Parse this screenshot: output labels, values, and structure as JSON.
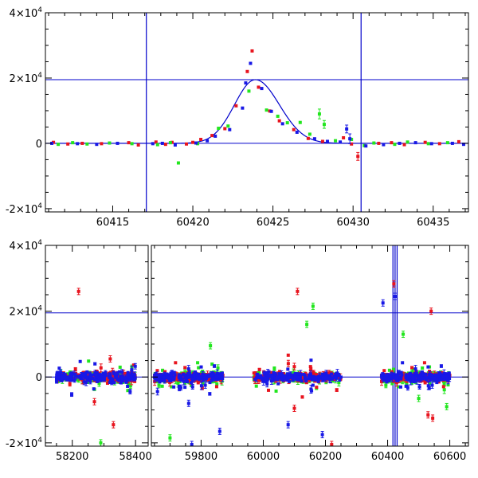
{
  "colors": {
    "red": "#e8141e",
    "green": "#22e61e",
    "blue": "#1818e6",
    "line": "#0000cc"
  },
  "chart_data": [
    {
      "type": "scatter",
      "title": "",
      "xlabel": "",
      "ylabel": "",
      "xlim": [
        60410.8,
        60437.2
      ],
      "ylim": [
        -21000,
        40000
      ],
      "grid": false,
      "x_ticks": [
        60415,
        60420,
        60425,
        60430,
        60435
      ],
      "y_ticks": [
        {
          "value": -20000,
          "mant": "-2×10",
          "exp": "4"
        },
        {
          "value": 0,
          "mant": "0",
          "exp": ""
        },
        {
          "value": 20000,
          "mant": "2×10",
          "exp": "4"
        },
        {
          "value": 40000,
          "mant": "4×10",
          "exp": "4"
        }
      ],
      "vlines": [
        60417.1,
        60430.5
      ],
      "hlines": [
        0,
        19500
      ],
      "model_curve": {
        "peak_x": 60423.9,
        "peak_y": 19500,
        "rise_width": 1.3,
        "decay_width": 1.5
      },
      "series": [
        {
          "color": "red",
          "points": [
            [
              60411.3,
              300,
              0
            ],
            [
              60412.2,
              -200,
              0
            ],
            [
              60413.1,
              0,
              0
            ],
            [
              60414.3,
              -100,
              0
            ],
            [
              60416.0,
              200,
              0
            ],
            [
              60416.6,
              -500,
              0
            ],
            [
              60417.7,
              400,
              0
            ],
            [
              60418.3,
              -300,
              0
            ],
            [
              60418.7,
              300,
              0
            ],
            [
              60419.6,
              -200,
              0
            ],
            [
              60420.0,
              300,
              0
            ],
            [
              60420.5,
              1200,
              0
            ],
            [
              60421.2,
              2400,
              0
            ],
            [
              60422.0,
              4500,
              0
            ],
            [
              60422.7,
              11500,
              0
            ],
            [
              60423.4,
              22000,
              0
            ],
            [
              60423.7,
              28300,
              0
            ],
            [
              60424.1,
              17200,
              0
            ],
            [
              60424.8,
              9900,
              0
            ],
            [
              60425.4,
              6900,
              0
            ],
            [
              60426.3,
              4200,
              0
            ],
            [
              60427.2,
              1500,
              0
            ],
            [
              60428.1,
              600,
              0
            ],
            [
              60429.4,
              1700,
              0
            ],
            [
              60429.9,
              -200,
              0
            ],
            [
              60430.3,
              -4000,
              1200
            ],
            [
              60431.6,
              0,
              0
            ],
            [
              60432.4,
              200,
              0
            ],
            [
              60433.2,
              -400,
              0
            ],
            [
              60434.5,
              300,
              0
            ],
            [
              60435.4,
              -100,
              0
            ],
            [
              60436.6,
              500,
              0
            ]
          ]
        },
        {
          "color": "green",
          "points": [
            [
              60411.6,
              -300,
              0
            ],
            [
              60412.5,
              200,
              0
            ],
            [
              60413.4,
              -200,
              0
            ],
            [
              60414.8,
              100,
              0
            ],
            [
              60416.2,
              -100,
              0
            ],
            [
              60417.8,
              -400,
              0
            ],
            [
              60418.6,
              200,
              0
            ],
            [
              60419.1,
              -6000,
              0
            ],
            [
              60420.3,
              -100,
              0
            ],
            [
              60421.6,
              4600,
              0
            ],
            [
              60422.2,
              5300,
              0
            ],
            [
              60423.5,
              16000,
              0
            ],
            [
              60424.6,
              10200,
              0
            ],
            [
              60425.3,
              8300,
              0
            ],
            [
              60425.9,
              6300,
              0
            ],
            [
              60426.7,
              6400,
              0
            ],
            [
              60427.3,
              2800,
              0
            ],
            [
              60427.9,
              9000,
              1500
            ],
            [
              60428.2,
              5800,
              1200
            ],
            [
              60428.9,
              800,
              0
            ],
            [
              60429.9,
              1200,
              0
            ],
            [
              60430.7,
              -700,
              0
            ],
            [
              60431.3,
              100,
              0
            ],
            [
              60432.6,
              -300,
              0
            ],
            [
              60433.4,
              400,
              0
            ],
            [
              60434.7,
              -100,
              0
            ],
            [
              60435.9,
              200,
              0
            ]
          ]
        },
        {
          "color": "blue",
          "points": [
            [
              60411.2,
              0,
              0
            ],
            [
              60412.8,
              -100,
              0
            ],
            [
              60414.0,
              -300,
              0
            ],
            [
              60415.3,
              0,
              0
            ],
            [
              60417.5,
              -100,
              0
            ],
            [
              60418.1,
              0,
              0
            ],
            [
              60418.9,
              -500,
              0
            ],
            [
              60420.2,
              100,
              0
            ],
            [
              60420.9,
              800,
              0
            ],
            [
              60421.4,
              2200,
              0
            ],
            [
              60422.3,
              4200,
              0
            ],
            [
              60423.1,
              10800,
              0
            ],
            [
              60423.3,
              18500,
              0
            ],
            [
              60423.6,
              24500,
              0
            ],
            [
              60424.3,
              16800,
              0
            ],
            [
              60424.9,
              9800,
              0
            ],
            [
              60425.6,
              6000,
              0
            ],
            [
              60426.5,
              3400,
              0
            ],
            [
              60427.6,
              1400,
              0
            ],
            [
              60428.4,
              600,
              0
            ],
            [
              60429.2,
              400,
              0
            ],
            [
              60429.6,
              4400,
              1200
            ],
            [
              60429.8,
              1400,
              1500
            ],
            [
              60430.8,
              -800,
              0
            ],
            [
              60431.9,
              -400,
              0
            ],
            [
              60432.9,
              0,
              0
            ],
            [
              60433.9,
              200,
              0
            ],
            [
              60434.9,
              -100,
              0
            ],
            [
              60436.2,
              0,
              0
            ],
            [
              60436.9,
              -300,
              0
            ]
          ]
        }
      ]
    },
    {
      "type": "scatter",
      "title": "",
      "xlabel": "",
      "ylabel": "",
      "segments": [
        {
          "xlim": [
            58115,
            58440
          ],
          "x_ticks": [
            58200,
            58400
          ]
        },
        {
          "xlim": [
            59640,
            60660
          ],
          "x_ticks": [
            59800,
            60000,
            60200,
            60400,
            60600
          ]
        }
      ],
      "ylim": [
        -21000,
        40000
      ],
      "grid": false,
      "y_ticks": [
        {
          "value": -20000,
          "mant": "-2×10",
          "exp": "4"
        },
        {
          "value": 0,
          "mant": "0",
          "exp": ""
        },
        {
          "value": 20000,
          "mant": "2×10",
          "exp": "4"
        },
        {
          "value": 40000,
          "mant": "4×10",
          "exp": "4"
        }
      ],
      "hlines": [
        0,
        19500
      ],
      "vlines": [
        60417.1,
        60424.0,
        60430.5
      ],
      "clusters": [
        {
          "xmin": 58150,
          "xmax": 58400,
          "x_outliers": [
            [
              58220,
              26000,
              "red"
            ],
            [
              58290,
              -20000,
              "green"
            ],
            [
              58330,
              -14500,
              "red"
            ],
            [
              58270,
              -7500,
              "red"
            ],
            [
              58320,
              5500,
              "red"
            ]
          ]
        },
        {
          "xmin": 59650,
          "xmax": 59870,
          "x_outliers": [
            [
              59700,
              -18500,
              "green"
            ],
            [
              59770,
              -20500,
              "blue"
            ],
            [
              59860,
              -16500,
              "blue"
            ],
            [
              59760,
              -8000,
              "blue"
            ],
            [
              59830,
              9500,
              "green"
            ]
          ]
        },
        {
          "xmin": 59970,
          "xmax": 60250,
          "x_outliers": [
            [
              60110,
              26000,
              "red"
            ],
            [
              60160,
              21500,
              "green"
            ],
            [
              60140,
              16000,
              "green"
            ],
            [
              60080,
              -14500,
              "blue"
            ],
            [
              60220,
              -20500,
              "red"
            ],
            [
              60190,
              -17500,
              "blue"
            ],
            [
              60100,
              -9500,
              "red"
            ]
          ]
        },
        {
          "xmin": 60380,
          "xmax": 60600,
          "x_outliers": [
            [
              60385,
              22500,
              "blue"
            ],
            [
              60420,
              28300,
              "red"
            ],
            [
              60424,
              24500,
              "blue"
            ],
            [
              60540,
              20000,
              "red"
            ],
            [
              60450,
              13000,
              "green"
            ],
            [
              60530,
              -11500,
              "red"
            ],
            [
              60545,
              -12500,
              "red"
            ],
            [
              60590,
              -9000,
              "green"
            ],
            [
              60500,
              -6500,
              "green"
            ]
          ]
        }
      ]
    }
  ]
}
